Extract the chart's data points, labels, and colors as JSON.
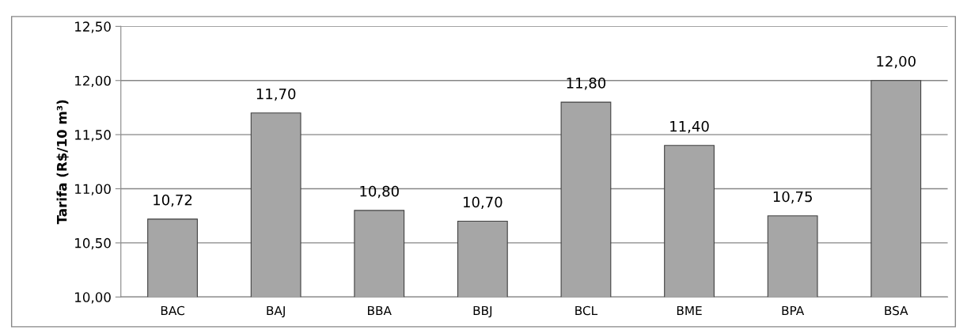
{
  "chart_data": {
    "type": "bar",
    "ylabel": "Tarifa (R$/10 m³)",
    "categories": [
      "BAC",
      "BAJ",
      "BBA",
      "BBJ",
      "BCL",
      "BME",
      "BPA",
      "BSA"
    ],
    "values": [
      10.72,
      11.7,
      10.8,
      10.7,
      11.8,
      11.4,
      10.75,
      12.0
    ],
    "value_labels": [
      "10,72",
      "11,70",
      "10,80",
      "10,70",
      "11,80",
      "11,40",
      "10,75",
      "12,00"
    ],
    "color": "#a6a6a6",
    "ylim": [
      10,
      12.5
    ],
    "yticks": [
      {
        "value": 10,
        "label": "10,00"
      },
      {
        "value": 10.5,
        "label": "10,50"
      },
      {
        "value": 11,
        "label": "11,00"
      },
      {
        "value": 11.5,
        "label": "11,50"
      },
      {
        "value": 12,
        "label": "12,00"
      },
      {
        "value": 12.5,
        "label": "12,50"
      }
    ],
    "grid": "y"
  }
}
